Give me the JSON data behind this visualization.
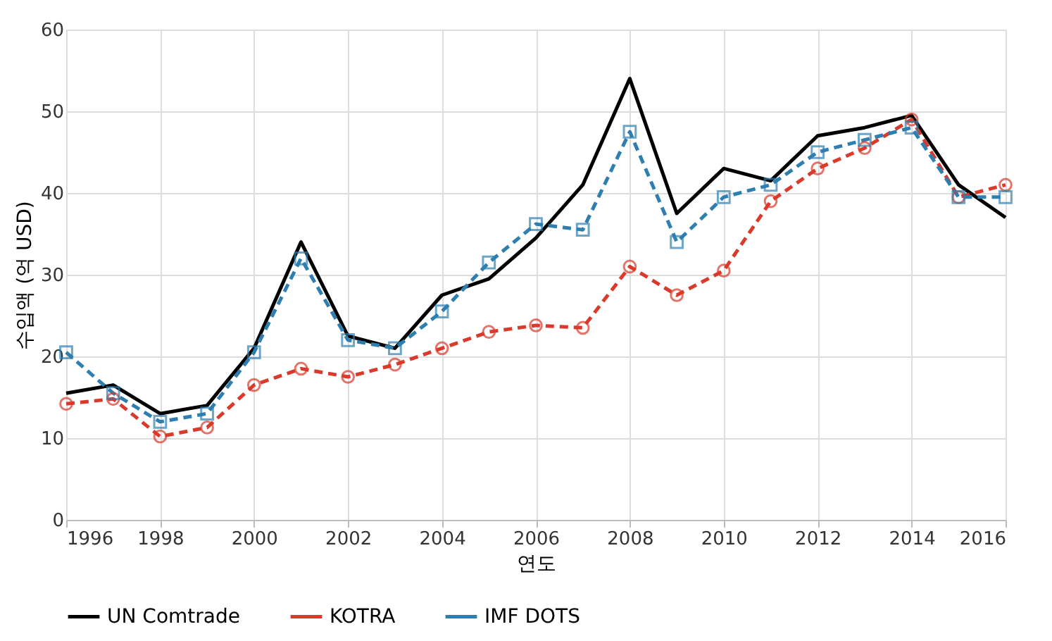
{
  "chart_data": {
    "type": "line",
    "xlabel": "연도",
    "ylabel": "수입액 (억 USD)",
    "x": [
      1996,
      1997,
      1998,
      1999,
      2000,
      2001,
      2002,
      2003,
      2004,
      2005,
      2006,
      2007,
      2008,
      2009,
      2010,
      2011,
      2012,
      2013,
      2014,
      2015,
      2016
    ],
    "series": [
      {
        "name": "UN Comtrade",
        "color": "#000000",
        "marker": "none",
        "line_style": "solid",
        "values": [
          15.5,
          16.5,
          13,
          14,
          21,
          34,
          22.5,
          21,
          27.5,
          29.5,
          34.5,
          41,
          54,
          37.5,
          43,
          41.5,
          47,
          48,
          49.5,
          41,
          37
        ]
      },
      {
        "name": "KOTRA",
        "color": "#d93a2b",
        "marker": "circle",
        "line_style": "dashed",
        "values": [
          14.2,
          14.8,
          10.2,
          11.3,
          16.5,
          18.5,
          17.5,
          19,
          21,
          23,
          23.8,
          23.5,
          31,
          27.5,
          30.5,
          39,
          43,
          45.5,
          49,
          39.5,
          41
        ]
      },
      {
        "name": "IMF DOTS",
        "color": "#2e7fb0",
        "marker": "square",
        "line_style": "dashed",
        "values": [
          20.5,
          15.5,
          12,
          13,
          20.5,
          32,
          22,
          21,
          25.5,
          31.5,
          36.2,
          35.5,
          47.5,
          34,
          39.5,
          41,
          45,
          46.5,
          48,
          39.5,
          39.5
        ]
      }
    ],
    "xlim": [
      1996,
      2016
    ],
    "xticks": [
      1996,
      1998,
      2000,
      2002,
      2004,
      2006,
      2008,
      2010,
      2012,
      2014,
      2016
    ],
    "ylim": [
      0,
      60
    ],
    "yticks": [
      0,
      10,
      20,
      30,
      40,
      50,
      60
    ],
    "grid": true,
    "legend": "bottom"
  }
}
